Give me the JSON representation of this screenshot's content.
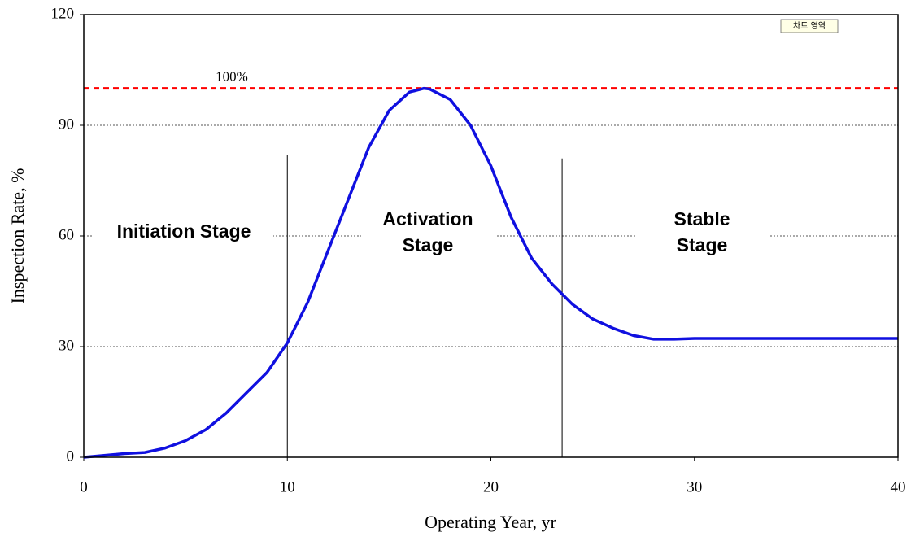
{
  "chart_data": {
    "type": "line",
    "xlabel": "Operating Year, yr",
    "ylabel": "Inspection Rate, %",
    "x": [
      0,
      1,
      2,
      3,
      4,
      5,
      6,
      7,
      8,
      9,
      10,
      11,
      12,
      13,
      14,
      15,
      16,
      16.7,
      17,
      18,
      19,
      20,
      21,
      22,
      23,
      24,
      25,
      26,
      27,
      28,
      29,
      30,
      32,
      34,
      36,
      38,
      40
    ],
    "series": [
      {
        "name": "Inspection Rate",
        "color": "#1010e0",
        "values": [
          0,
          0.5,
          1,
          1.3,
          2.5,
          4.5,
          7.5,
          12,
          17.5,
          23,
          31,
          42,
          56,
          70,
          84,
          94,
          99,
          100,
          99.8,
          97,
          90,
          79,
          65,
          54,
          47,
          41.5,
          37.5,
          35,
          33,
          32,
          32,
          32.2,
          32.2,
          32.2,
          32.2,
          32.2,
          32.2
        ]
      }
    ],
    "xlim": [
      0,
      40
    ],
    "xticks": [
      0,
      10,
      20,
      30,
      40
    ],
    "ylim": [
      0,
      120
    ],
    "yticks": [
      0,
      30,
      60,
      90,
      120
    ],
    "grid": true,
    "reference_line": {
      "value": 100,
      "label": "100%",
      "color": "#ff0000"
    },
    "stage_boundaries": [
      {
        "x": 10,
        "top": 82
      },
      {
        "x": 23.5,
        "top": 81
      }
    ],
    "stages": [
      [
        "Initiation Stage"
      ],
      [
        "Activation",
        "Stage"
      ],
      [
        "Stable",
        "Stage"
      ]
    ],
    "tag": "차트 영역"
  }
}
